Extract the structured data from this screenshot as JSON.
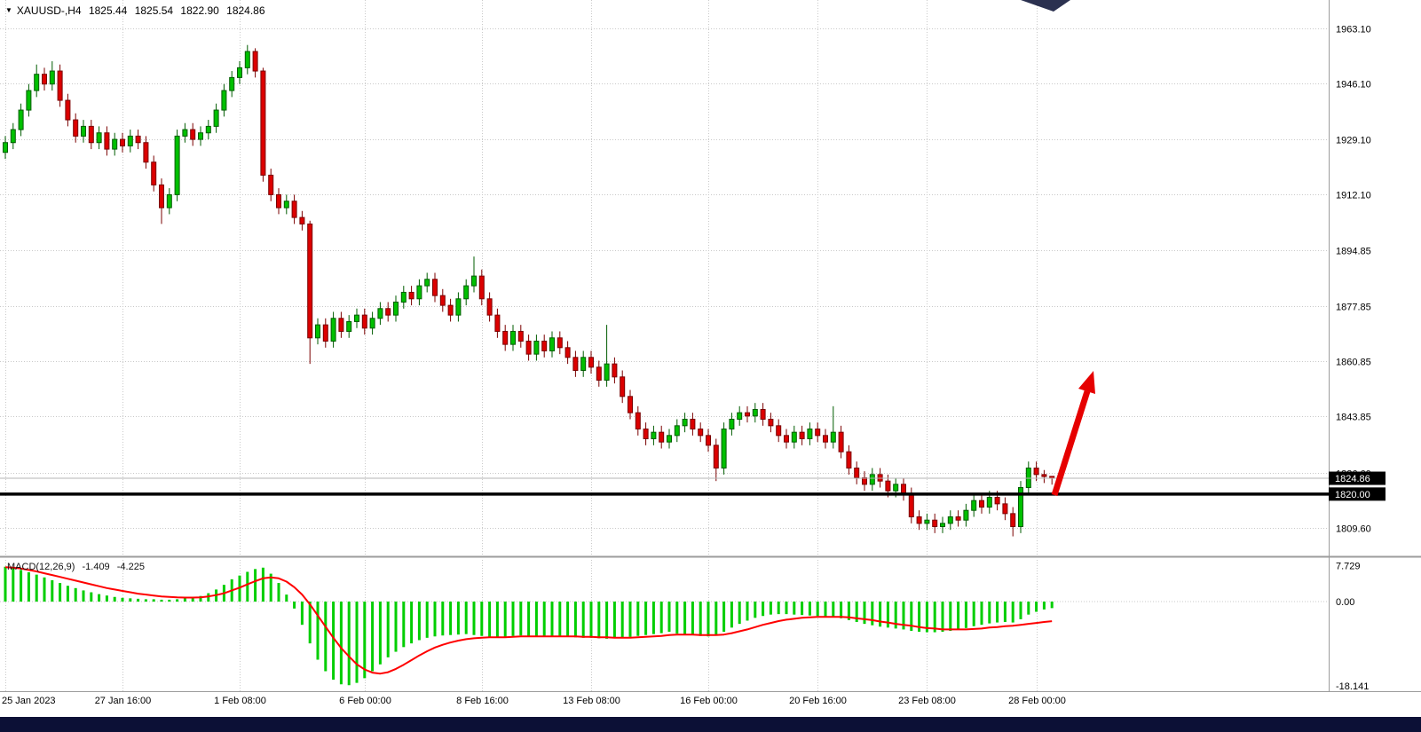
{
  "header": {
    "symbol_timeframe": "XAUUSD-,H4",
    "open": "1825.44",
    "high": "1825.54",
    "low": "1822.90",
    "close": "1824.86"
  },
  "misc": {
    "taskbar_color": "#0c1036",
    "artifact_color": "#2b3150"
  },
  "chart_data": [
    {
      "type": "candlestick",
      "title": "XAUUSD-,H4",
      "y_tick_labels": [
        "1963.10",
        "1946.10",
        "1929.10",
        "1912.10",
        "1894.85",
        "1877.85",
        "1860.85",
        "1843.85",
        "1826.60",
        "1809.60"
      ],
      "x_tick_labels": [
        "25 Jan 2023",
        "27 Jan 16:00",
        "1 Feb 08:00",
        "6 Feb 00:00",
        "8 Feb 16:00",
        "13 Feb 08:00",
        "16 Feb 00:00",
        "20 Feb 16:00",
        "23 Feb 08:00",
        "28 Feb 00:00"
      ],
      "x_tick_bar_indices": [
        0,
        15,
        30,
        46,
        61,
        75,
        90,
        104,
        118,
        132
      ],
      "price_badges": [
        "1824.86",
        "1820.00"
      ],
      "support_line_price": 1820.0,
      "last_price": 1824.86,
      "annotation_arrow": {
        "color": "#e60000",
        "direction": "up-right"
      },
      "colors": {
        "bull": "#00C000",
        "bull_border": "#005c00",
        "bear": "#DC0000",
        "bear_border": "#7a0000",
        "grid": "#c9c9c9",
        "hline": "#000000"
      },
      "candles": {
        "open": [
          1925,
          1928,
          1932,
          1938,
          1944,
          1949,
          1946,
          1950,
          1941,
          1935,
          1930,
          1933,
          1928,
          1931,
          1926,
          1929,
          1927,
          1930,
          1928,
          1922,
          1915,
          1908,
          1912,
          1930,
          1932,
          1929,
          1931,
          1933,
          1938,
          1944,
          1948,
          1951,
          1956,
          1950,
          1918,
          1912,
          1908,
          1910,
          1905,
          1903,
          1868,
          1872,
          1867,
          1874,
          1870,
          1873,
          1875,
          1871,
          1874,
          1877,
          1875,
          1879,
          1882,
          1880,
          1884,
          1886,
          1881,
          1878,
          1875,
          1880,
          1884,
          1887,
          1880,
          1875,
          1870,
          1866,
          1870,
          1867,
          1863,
          1867,
          1864,
          1868,
          1865,
          1862,
          1858,
          1862,
          1859,
          1855,
          1860,
          1856,
          1850,
          1845,
          1840,
          1837,
          1839,
          1836,
          1838,
          1841,
          1843,
          1840,
          1838,
          1835,
          1828,
          1840,
          1843,
          1845,
          1844,
          1846,
          1843,
          1841,
          1838,
          1836,
          1839,
          1837,
          1840,
          1838,
          1836,
          1839,
          1833,
          1828,
          1825,
          1823,
          1826,
          1824,
          1821,
          1823,
          1820,
          1813,
          1811,
          1812,
          1810,
          1811,
          1813,
          1812,
          1815,
          1818,
          1816,
          1819,
          1817,
          1814,
          1810,
          1822,
          1828,
          1826,
          1825.44
        ],
        "high": [
          1930,
          1934,
          1940,
          1946,
          1952,
          1951,
          1953,
          1952,
          1943,
          1937,
          1935,
          1935,
          1933,
          1933,
          1931,
          1931,
          1932,
          1932,
          1930,
          1924,
          1917,
          1914,
          1932,
          1934,
          1934,
          1933,
          1935,
          1940,
          1946,
          1950,
          1953,
          1958,
          1957,
          1951,
          1920,
          1914,
          1912,
          1912,
          1907,
          1904,
          1874,
          1874,
          1876,
          1876,
          1875,
          1877,
          1877,
          1876,
          1879,
          1879,
          1881,
          1884,
          1884,
          1886,
          1888,
          1888,
          1883,
          1880,
          1882,
          1886,
          1893,
          1889,
          1882,
          1877,
          1872,
          1872,
          1872,
          1869,
          1869,
          1869,
          1870,
          1870,
          1867,
          1864,
          1864,
          1864,
          1861,
          1872,
          1862,
          1858,
          1852,
          1847,
          1842,
          1841,
          1841,
          1840,
          1843,
          1845,
          1845,
          1842,
          1840,
          1837,
          1842,
          1845,
          1847,
          1847,
          1848,
          1848,
          1845,
          1843,
          1840,
          1841,
          1841,
          1842,
          1842,
          1840,
          1847,
          1841,
          1835,
          1830,
          1827,
          1828,
          1828,
          1826,
          1825,
          1825,
          1822,
          1815,
          1814,
          1814,
          1813,
          1815,
          1815,
          1817,
          1820,
          1820,
          1821,
          1821,
          1819,
          1816,
          1824,
          1830,
          1830,
          1827.4,
          1825.54
        ],
        "low": [
          1923,
          1926,
          1930,
          1936,
          1942,
          1944,
          1944,
          1939,
          1933,
          1928,
          1928,
          1926,
          1926,
          1924,
          1924,
          1925,
          1925,
          1926,
          1920,
          1913,
          1903,
          1906,
          1910,
          1928,
          1927,
          1927,
          1929,
          1931,
          1936,
          1942,
          1946,
          1949,
          1948,
          1916,
          1910,
          1906,
          1906,
          1903,
          1901,
          1860,
          1866,
          1865,
          1865,
          1868,
          1868,
          1871,
          1869,
          1869,
          1872,
          1873,
          1873,
          1877,
          1878,
          1878,
          1882,
          1879,
          1876,
          1873,
          1873,
          1878,
          1882,
          1878,
          1873,
          1868,
          1864,
          1864,
          1865,
          1861,
          1861,
          1862,
          1862,
          1863,
          1860,
          1856,
          1856,
          1857,
          1853,
          1853,
          1854,
          1848,
          1843,
          1838,
          1835,
          1835,
          1834,
          1834,
          1836,
          1839,
          1838,
          1836,
          1833,
          1824,
          1826,
          1838,
          1841,
          1842,
          1842,
          1841,
          1839,
          1836,
          1834,
          1834,
          1835,
          1835,
          1836,
          1834,
          1834,
          1831,
          1826,
          1823,
          1821,
          1821,
          1822,
          1819,
          1819,
          1818,
          1811,
          1809,
          1809,
          1808,
          1808,
          1809,
          1810,
          1810,
          1813,
          1814,
          1814,
          1815,
          1812,
          1807,
          1808,
          1820,
          1824,
          1823.4,
          1822.9
        ],
        "close": [
          1928,
          1932,
          1938,
          1944,
          1949,
          1946,
          1950,
          1941,
          1935,
          1930,
          1933,
          1928,
          1931,
          1926,
          1929,
          1927,
          1930,
          1928,
          1922,
          1915,
          1908,
          1912,
          1930,
          1932,
          1929,
          1931,
          1933,
          1938,
          1944,
          1948,
          1951,
          1956,
          1950,
          1918,
          1912,
          1908,
          1910,
          1905,
          1903,
          1868,
          1872,
          1867,
          1874,
          1870,
          1873,
          1875,
          1871,
          1874,
          1877,
          1875,
          1879,
          1882,
          1880,
          1884,
          1886,
          1881,
          1878,
          1875,
          1880,
          1884,
          1887,
          1880,
          1875,
          1870,
          1866,
          1870,
          1867,
          1863,
          1867,
          1864,
          1868,
          1865,
          1862,
          1858,
          1862,
          1859,
          1855,
          1860,
          1856,
          1850,
          1845,
          1840,
          1837,
          1839,
          1836,
          1838,
          1841,
          1843,
          1840,
          1838,
          1835,
          1828,
          1840,
          1843,
          1845,
          1844,
          1846,
          1843,
          1841,
          1838,
          1836,
          1839,
          1837,
          1840,
          1838,
          1836,
          1839,
          1833,
          1828,
          1825,
          1823,
          1826,
          1824,
          1821,
          1823,
          1820,
          1813,
          1811,
          1812,
          1810,
          1811,
          1813,
          1812,
          1815,
          1818,
          1816,
          1819,
          1817,
          1814,
          1810,
          1822,
          1828,
          1826,
          1825.4,
          1824.86
        ]
      }
    },
    {
      "type": "bar",
      "subtype": "macd",
      "label": "MACD(12,26,9)",
      "value_macd": "-1.409",
      "value_signal": "-4.225",
      "y_tick_labels": [
        "7.729",
        "0.00",
        "-18.141"
      ],
      "y_tick_values": [
        7.729,
        0,
        -18.141
      ],
      "histogram_color": "#00CE00",
      "signal_color": "#FF0000",
      "histogram": [
        7.5,
        7.2,
        6.8,
        6.3,
        5.8,
        5.2,
        4.6,
        4.0,
        3.4,
        2.9,
        2.4,
        2.0,
        1.6,
        1.3,
        1.0,
        0.8,
        0.7,
        0.6,
        0.5,
        0.5,
        0.4,
        0.4,
        0.5,
        0.7,
        0.9,
        1.2,
        1.8,
        2.6,
        3.6,
        4.8,
        5.6,
        6.4,
        7.0,
        7.3,
        6.0,
        4.0,
        1.5,
        -1.5,
        -5.0,
        -9.0,
        -12.5,
        -15.0,
        -16.8,
        -17.8,
        -18.0,
        -17.5,
        -16.5,
        -15.0,
        -13.5,
        -12.0,
        -10.8,
        -9.8,
        -9.0,
        -8.3,
        -7.8,
        -7.5,
        -7.3,
        -7.2,
        -7.1,
        -7.0,
        -7.2,
        -7.4,
        -7.6,
        -7.7,
        -7.6,
        -7.4,
        -7.3,
        -7.4,
        -7.5,
        -7.6,
        -7.5,
        -7.4,
        -7.5,
        -7.7,
        -7.8,
        -7.8,
        -7.9,
        -8.0,
        -7.9,
        -7.8,
        -7.6,
        -7.4,
        -7.2,
        -7.0,
        -6.8,
        -6.5,
        -6.9,
        -7.0,
        -7.2,
        -7.4,
        -7.5,
        -7.2,
        -6.5,
        -5.6,
        -4.8,
        -4.1,
        -3.5,
        -3.1,
        -2.8,
        -2.7,
        -2.7,
        -2.8,
        -2.9,
        -3.0,
        -3.1,
        -3.2,
        -3.3,
        -3.6,
        -4.0,
        -4.4,
        -4.8,
        -5.1,
        -5.4,
        -5.6,
        -5.8,
        -6.0,
        -6.3,
        -6.5,
        -6.6,
        -6.6,
        -6.5,
        -6.3,
        -6.0,
        -5.7,
        -5.3,
        -5.0,
        -4.7,
        -4.5,
        -4.4,
        -4.5,
        -3.8,
        -2.8,
        -2.2,
        -1.7,
        -1.409
      ],
      "signal": [
        7.4,
        7.3,
        7.1,
        6.8,
        6.5,
        6.1,
        5.7,
        5.3,
        4.9,
        4.5,
        4.1,
        3.7,
        3.3,
        2.9,
        2.6,
        2.3,
        2.0,
        1.7,
        1.5,
        1.3,
        1.1,
        1.0,
        0.9,
        0.85,
        0.85,
        0.9,
        1.1,
        1.4,
        1.8,
        2.4,
        3.0,
        3.7,
        4.4,
        5.0,
        5.2,
        5.0,
        4.3,
        3.1,
        1.5,
        -0.6,
        -3.0,
        -5.4,
        -7.8,
        -10.0,
        -11.8,
        -13.5,
        -14.6,
        -15.3,
        -15.5,
        -15.2,
        -14.5,
        -13.6,
        -12.6,
        -11.6,
        -10.7,
        -9.9,
        -9.3,
        -8.8,
        -8.4,
        -8.1,
        -7.9,
        -7.8,
        -7.7,
        -7.7,
        -7.7,
        -7.6,
        -7.5,
        -7.5,
        -7.5,
        -7.5,
        -7.5,
        -7.5,
        -7.5,
        -7.5,
        -7.6,
        -7.6,
        -7.7,
        -7.7,
        -7.8,
        -7.8,
        -7.8,
        -7.7,
        -7.6,
        -7.5,
        -7.4,
        -7.2,
        -7.1,
        -7.1,
        -7.1,
        -7.2,
        -7.2,
        -7.2,
        -7.1,
        -6.8,
        -6.4,
        -6.0,
        -5.5,
        -5.0,
        -4.6,
        -4.2,
        -3.9,
        -3.7,
        -3.5,
        -3.4,
        -3.3,
        -3.3,
        -3.3,
        -3.3,
        -3.4,
        -3.6,
        -3.8,
        -4.0,
        -4.3,
        -4.5,
        -4.8,
        -5.0,
        -5.2,
        -5.5,
        -5.7,
        -5.8,
        -6.0,
        -6.0,
        -6.0,
        -6.0,
        -5.9,
        -5.8,
        -5.6,
        -5.5,
        -5.3,
        -5.2,
        -5.0,
        -4.8,
        -4.6,
        -4.4,
        -4.225
      ]
    }
  ]
}
